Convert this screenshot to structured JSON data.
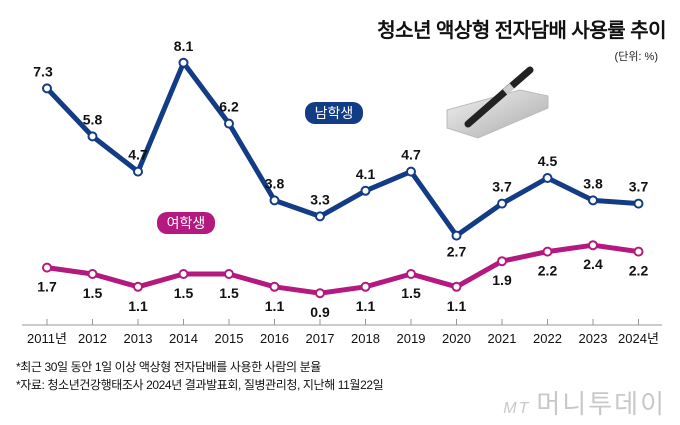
{
  "chart_data": {
    "type": "line",
    "title": "청소년 액상형 전자담배 사용률 추이",
    "unit": "(단위: %)",
    "categories": [
      "2011년",
      "2012",
      "2013",
      "2014",
      "2015",
      "2016",
      "2017",
      "2018",
      "2019",
      "2020",
      "2021",
      "2022",
      "2023",
      "2024년"
    ],
    "series": [
      {
        "name": "남학생",
        "color": "#123c85",
        "values": [
          7.3,
          5.8,
          4.7,
          8.1,
          6.2,
          3.8,
          3.3,
          4.1,
          4.7,
          2.7,
          3.7,
          4.5,
          3.8,
          3.7
        ]
      },
      {
        "name": "여학생",
        "color": "#b3197e",
        "values": [
          1.7,
          1.5,
          1.1,
          1.5,
          1.5,
          1.1,
          0.9,
          1.1,
          1.5,
          1.1,
          1.9,
          2.2,
          2.4,
          2.2
        ]
      }
    ],
    "ylim": [
      0,
      8.5
    ],
    "grid": false,
    "legend": "inline labels"
  },
  "notes": [
    "*최근 30일 동안 1일 이상 액상형 전자담배를 사용한 사람의 분율",
    "*자료: 청소년건강행태조사 2024년 결과발표회, 질병관리청, 지난해 11월22일"
  ],
  "logo": {
    "mt": "MT",
    "name": "머니투데이"
  }
}
